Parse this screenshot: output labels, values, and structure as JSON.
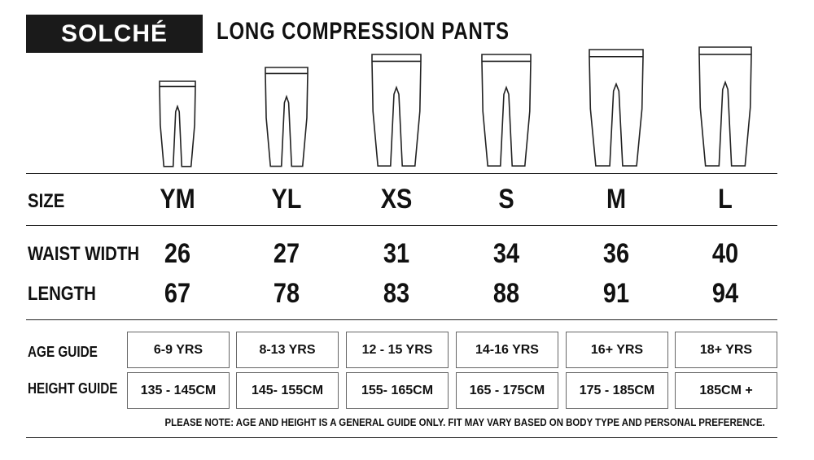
{
  "header": {
    "brand": "SOLCHÉ",
    "title": "LONG COMPRESSION PANTS"
  },
  "table": {
    "size_label": "SIZE",
    "sizes": [
      "YM",
      "YL",
      "XS",
      "S",
      "M",
      "L"
    ],
    "waist_label": "WAIST WIDTH",
    "waist": [
      26,
      27,
      31,
      34,
      36,
      40
    ],
    "length_label": "LENGTH",
    "length": [
      67,
      78,
      83,
      88,
      91,
      94
    ],
    "age_label": "AGE GUIDE",
    "age": [
      "6-9 YRS",
      "8-13 YRS",
      "12 - 15 YRS",
      "14-16 YRS",
      "16+ YRS",
      "18+ YRS"
    ],
    "height_label": "HEIGHT GUIDE",
    "height": [
      "135 - 145CM",
      "145- 155CM",
      "155- 165CM",
      "165 - 175CM",
      "175 - 185CM",
      "185CM +"
    ]
  },
  "note": "PLEASE NOTE:  AGE AND HEIGHT IS A GENERAL GUIDE ONLY. FIT MAY VARY BASED ON BODY TYPE AND PERSONAL PREFERENCE."
}
